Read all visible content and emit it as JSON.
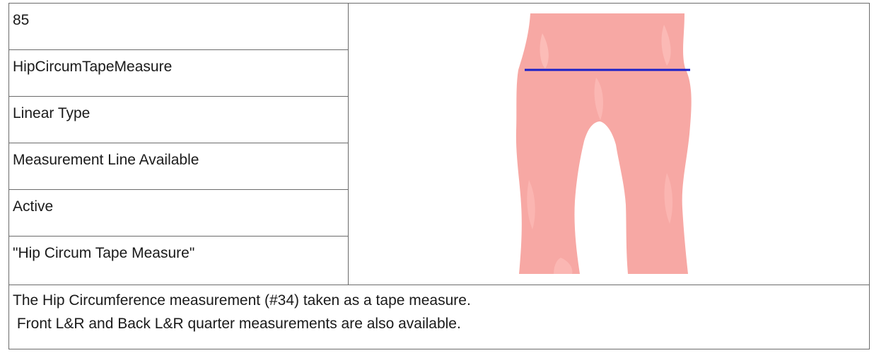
{
  "rows": [
    {
      "value": "85"
    },
    {
      "value": "HipCircumTapeMeasure"
    },
    {
      "value": "Linear Type"
    },
    {
      "value": "Measurement Line Available"
    },
    {
      "value": "Active"
    },
    {
      "value": "\"Hip Circum Tape Measure\""
    }
  ],
  "description": {
    "line1": "The Hip Circumference measurement (#34) taken as a tape measure.",
    "line2": " Front L&R and Back L&R quarter measurements are also available."
  },
  "figure": {
    "body_color": "#f7a8a4",
    "highlight_color": "#ffc6c2",
    "measure_line_color": "#1a1fc8"
  }
}
